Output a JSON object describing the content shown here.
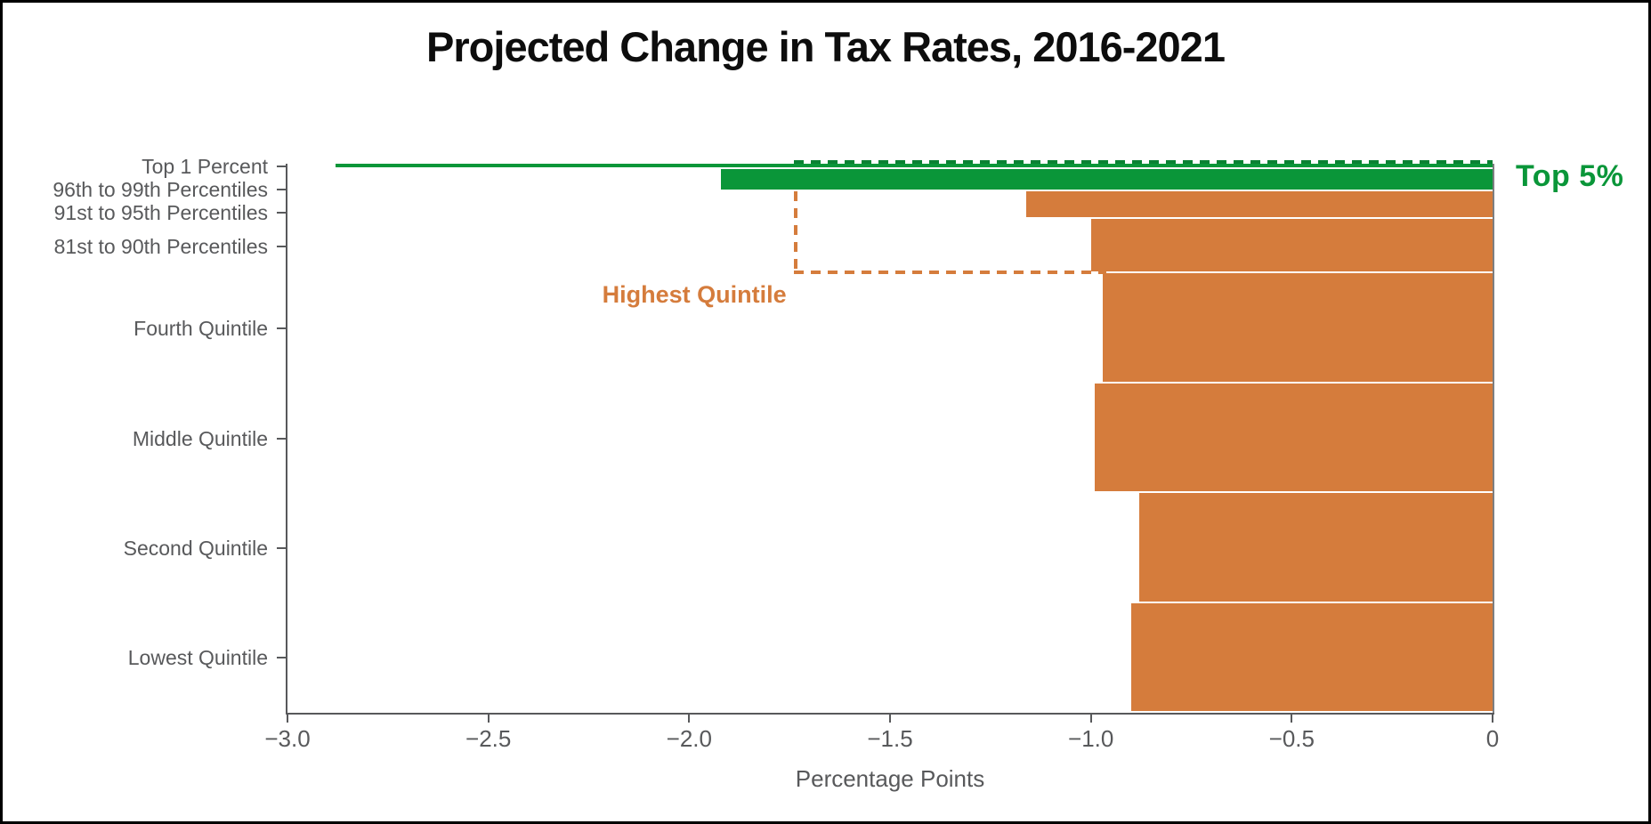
{
  "title": "Projected Change in Tax Rates, 2016-2021",
  "chart_data": {
    "type": "bar",
    "orientation": "horizontal",
    "title": "Projected Change in Tax Rates, 2016-2021",
    "xlabel": "Percentage Points",
    "ylabel": "",
    "xlim": [
      -3.0,
      0
    ],
    "x_tick_labels": [
      "−3.0",
      "−2.5",
      "−2.0",
      "−1.5",
      "−1.0",
      "−0.5",
      "0"
    ],
    "grid": "off",
    "bar_height_rule": "bar thickness proportional to population share of each income group",
    "palette": {
      "green": "#0A9639",
      "green_dark_dash": "#0A8233",
      "orange": "#D57C3C",
      "axis_gray": "#58595b",
      "title_black": "#0d0d0d"
    },
    "rows": [
      {
        "label": "Top 1 Percent",
        "value": -2.88,
        "share": 1,
        "color": "green"
      },
      {
        "label": "96th to 99th Percentiles",
        "value": -1.92,
        "share": 4,
        "color": "green"
      },
      {
        "label": "91st to 95th Percentiles",
        "value": -1.16,
        "share": 5,
        "color": "orange"
      },
      {
        "label": "81st to 90th Percentiles",
        "value": -1.0,
        "share": 10,
        "color": "orange"
      },
      {
        "label": "Fourth Quintile",
        "value": -0.97,
        "share": 20,
        "color": "orange"
      },
      {
        "label": "Middle Quintile",
        "value": -0.99,
        "share": 20,
        "color": "orange"
      },
      {
        "label": "Second Quintile",
        "value": -0.88,
        "share": 20,
        "color": "orange"
      },
      {
        "label": "Lowest Quintile",
        "value": -0.9,
        "share": 20,
        "color": "orange"
      }
    ],
    "annotations": {
      "top5": {
        "label": "Top 5%",
        "color": "green",
        "applies_to": [
          "Top 1 Percent",
          "96th to 99th Percentiles"
        ]
      },
      "highest_quintile": {
        "label": "Highest Quintile",
        "value": -1.74,
        "style": "dashed bracket outlining hypothetical Highest Quintile bar spanning the top four groups",
        "color": "orange"
      }
    }
  }
}
